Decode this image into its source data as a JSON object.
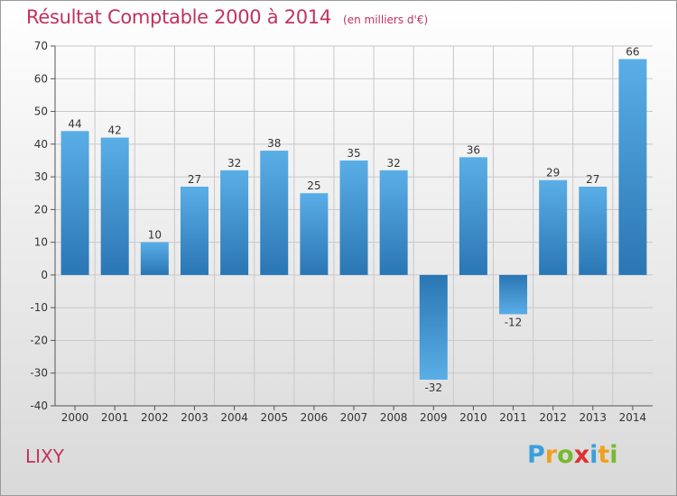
{
  "header": {
    "title": "Résultat Comptable 2000 à 2014",
    "subtitle": "(en milliers d'€)"
  },
  "footer": {
    "place": "LIXY",
    "brand": {
      "letters": [
        "P",
        "r",
        "o",
        "x",
        "i",
        "t",
        "i"
      ],
      "colors": [
        "#3aa0dc",
        "#f0a020",
        "#78b832",
        "#e03030",
        "#3aa0dc",
        "#f0a020",
        "#78b832"
      ]
    }
  },
  "chart_data": {
    "type": "bar",
    "categories": [
      "2000",
      "2001",
      "2002",
      "2003",
      "2004",
      "2005",
      "2006",
      "2007",
      "2008",
      "2009",
      "2010",
      "2011",
      "2012",
      "2013",
      "2014"
    ],
    "values": [
      44,
      42,
      10,
      27,
      32,
      38,
      25,
      35,
      32,
      -32,
      36,
      -12,
      29,
      27,
      66
    ],
    "ylim": [
      -40,
      70
    ],
    "yticks": [
      -40,
      -30,
      -20,
      -10,
      0,
      10,
      20,
      30,
      40,
      50,
      60,
      70
    ],
    "grid": true,
    "bar_color_light": "#5aaee6",
    "bar_color_dark": "#2a76b4"
  }
}
